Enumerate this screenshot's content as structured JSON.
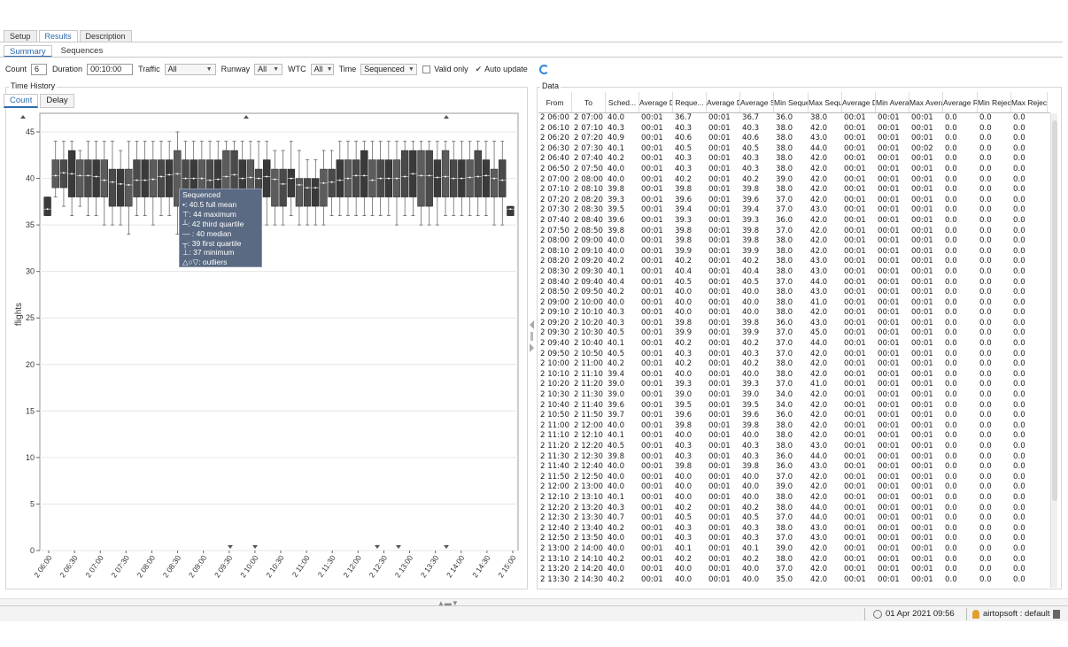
{
  "tabs_main": [
    "Setup",
    "Results",
    "Description"
  ],
  "tabs_sub": [
    "Summary",
    "Sequences"
  ],
  "toolbar": {
    "count_label": "Count",
    "count_value": "6",
    "duration_label": "Duration",
    "duration_value": "00:10:00",
    "traffic_label": "Traffic",
    "traffic_value": "All",
    "runway_label": "Runway",
    "runway_value": "All",
    "wtc_label": "WTC",
    "wtc_value": "All",
    "time_label": "Time",
    "time_value": "Sequenced",
    "valid_only": "Valid only",
    "auto_update": "Auto update"
  },
  "left": {
    "title": "Time History",
    "tabs": [
      "Count",
      "Delay"
    ]
  },
  "tooltip": {
    "title": "Sequenced",
    "lines": [
      "•: 40.5   full mean",
      "⊤: 44    maximum",
      "┴: 42   third quartile",
      "— : 40    median",
      "┬: 39   first quartile",
      "⊥: 37    minimum",
      "△○▽:   outliers"
    ]
  },
  "chart_data": {
    "type": "box",
    "ylabel": "flights",
    "ylim": [
      0,
      47
    ],
    "yticks": [
      0,
      5,
      10,
      15,
      20,
      25,
      30,
      35,
      40,
      45
    ],
    "xticks": [
      "2 06:00",
      "2 06:30",
      "2 07:00",
      "2 07:30",
      "2 08:00",
      "2 08:30",
      "2 09:00",
      "2 09:30",
      "2 10:00",
      "2 10:30",
      "2 11:00",
      "2 11:30",
      "2 12:00",
      "2 12:30",
      "2 13:00",
      "2 13:30",
      "2 14:00",
      "2 14:30",
      "2 15:00"
    ],
    "medians": [
      36.7,
      40.3,
      40.6,
      40.5,
      40.3,
      40.3,
      40.2,
      39.8,
      39.6,
      39.4,
      39.3,
      39.8,
      39.8,
      39.9,
      40.2,
      40.4,
      40.5,
      40.0,
      40.0,
      40.0,
      39.8,
      39.9,
      40.2,
      40.4,
      40.0,
      40.1,
      40.0,
      40.2,
      39.9,
      39.4,
      40.0,
      39.3,
      39.0,
      39.0,
      39.5,
      39.6,
      39.8,
      40.0,
      40.3,
      40.3,
      39.8,
      40.0,
      40.0,
      40.0,
      40.2,
      40.5,
      40.3,
      40.3,
      40.1,
      40.2,
      40.0,
      40.0,
      40.1,
      40.2,
      40.3,
      40.0,
      39.8,
      36.7
    ],
    "boxes": [
      [
        36,
        38
      ],
      [
        39,
        42
      ],
      [
        39,
        42
      ],
      [
        38,
        43
      ],
      [
        38,
        42
      ],
      [
        38,
        42
      ],
      [
        38,
        42
      ],
      [
        38,
        42
      ],
      [
        37,
        41
      ],
      [
        37,
        41
      ],
      [
        37,
        41
      ],
      [
        38,
        42
      ],
      [
        38,
        42
      ],
      [
        38,
        42
      ],
      [
        38,
        42
      ],
      [
        38,
        42
      ],
      [
        37,
        43
      ],
      [
        38,
        42
      ],
      [
        38,
        42
      ],
      [
        38,
        42
      ],
      [
        38,
        42
      ],
      [
        37,
        42
      ],
      [
        38,
        43
      ],
      [
        38,
        43
      ],
      [
        38,
        42
      ],
      [
        38,
        42
      ],
      [
        38,
        41
      ],
      [
        38,
        42
      ],
      [
        37,
        41
      ],
      [
        37,
        41
      ],
      [
        38,
        41
      ],
      [
        37,
        40
      ],
      [
        37,
        40
      ],
      [
        37,
        40
      ],
      [
        37,
        41
      ],
      [
        38,
        41
      ],
      [
        38,
        42
      ],
      [
        38,
        42
      ],
      [
        38,
        42
      ],
      [
        38,
        43
      ],
      [
        38,
        42
      ],
      [
        38,
        42
      ],
      [
        38,
        42
      ],
      [
        38,
        42
      ],
      [
        38,
        43
      ],
      [
        38,
        43
      ],
      [
        37,
        43
      ],
      [
        37,
        43
      ],
      [
        38,
        42
      ],
      [
        38,
        43
      ],
      [
        38,
        42
      ],
      [
        38,
        42
      ],
      [
        38,
        42
      ],
      [
        38,
        43
      ],
      [
        38,
        42
      ],
      [
        38,
        41
      ],
      [
        38,
        42
      ],
      [
        36,
        37
      ]
    ],
    "whiskers": [
      [
        36,
        38
      ],
      [
        38,
        44
      ],
      [
        37,
        44
      ],
      [
        36,
        44
      ],
      [
        37,
        43
      ],
      [
        36,
        44
      ],
      [
        36,
        44
      ],
      [
        35,
        44
      ],
      [
        35,
        44
      ],
      [
        35,
        43
      ],
      [
        34,
        44
      ],
      [
        36,
        44
      ],
      [
        36,
        44
      ],
      [
        35,
        44
      ],
      [
        36,
        44
      ],
      [
        36,
        44
      ],
      [
        34,
        45
      ],
      [
        36,
        44
      ],
      [
        36,
        44
      ],
      [
        36,
        44
      ],
      [
        35,
        44
      ],
      [
        35,
        44
      ],
      [
        36,
        44
      ],
      [
        36,
        44
      ],
      [
        36,
        44
      ],
      [
        35,
        44
      ],
      [
        36,
        44
      ],
      [
        35,
        44
      ],
      [
        35,
        43
      ],
      [
        35,
        43
      ],
      [
        36,
        44
      ],
      [
        35,
        43
      ],
      [
        35,
        42
      ],
      [
        35,
        42
      ],
      [
        35,
        43
      ],
      [
        36,
        43
      ],
      [
        36,
        44
      ],
      [
        36,
        44
      ],
      [
        36,
        44
      ],
      [
        36,
        44
      ],
      [
        36,
        44
      ],
      [
        36,
        44
      ],
      [
        36,
        44
      ],
      [
        35,
        44
      ],
      [
        36,
        44
      ],
      [
        36,
        44
      ],
      [
        35,
        44
      ],
      [
        35,
        44
      ],
      [
        35,
        44
      ],
      [
        36,
        44
      ],
      [
        36,
        44
      ],
      [
        36,
        44
      ],
      [
        36,
        44
      ],
      [
        36,
        44
      ],
      [
        36,
        44
      ],
      [
        35,
        44
      ],
      [
        35,
        44
      ],
      [
        36,
        37
      ]
    ]
  },
  "right": {
    "title": "Data",
    "columns": [
      "From",
      "To",
      "Sched...",
      "Average Delay",
      "Reque...",
      "Average Delay",
      "Average Sequence",
      "Min Sequence",
      "Max Sequence",
      "Average Delay",
      "Min Average",
      "Max Average",
      "Average Rejected",
      "Min Rejected",
      "Max Rejected"
    ],
    "rows": [
      [
        "2 06:00",
        "2 07:00",
        "40.0",
        "00:01",
        "36.7",
        "00:01",
        "36.7",
        "36.0",
        "38.0",
        "00:01",
        "00:01",
        "00:01",
        "0.0",
        "0.0",
        "0.0"
      ],
      [
        "2 06:10",
        "2 07:10",
        "40.3",
        "00:01",
        "40.3",
        "00:01",
        "40.3",
        "38.0",
        "42.0",
        "00:01",
        "00:01",
        "00:01",
        "0.0",
        "0.0",
        "0.0"
      ],
      [
        "2 06:20",
        "2 07:20",
        "40.9",
        "00:01",
        "40.6",
        "00:01",
        "40.6",
        "38.0",
        "43.0",
        "00:01",
        "00:01",
        "00:01",
        "0.0",
        "0.0",
        "0.0"
      ],
      [
        "2 06:30",
        "2 07:30",
        "40.1",
        "00:01",
        "40.5",
        "00:01",
        "40.5",
        "38.0",
        "44.0",
        "00:01",
        "00:01",
        "00:02",
        "0.0",
        "0.0",
        "0.0"
      ],
      [
        "2 06:40",
        "2 07:40",
        "40.2",
        "00:01",
        "40.3",
        "00:01",
        "40.3",
        "38.0",
        "42.0",
        "00:01",
        "00:01",
        "00:01",
        "0.0",
        "0.0",
        "0.0"
      ],
      [
        "2 06:50",
        "2 07:50",
        "40.0",
        "00:01",
        "40.3",
        "00:01",
        "40.3",
        "38.0",
        "42.0",
        "00:01",
        "00:01",
        "00:01",
        "0.0",
        "0.0",
        "0.0"
      ],
      [
        "2 07:00",
        "2 08:00",
        "40.0",
        "00:01",
        "40.2",
        "00:01",
        "40.2",
        "39.0",
        "42.0",
        "00:01",
        "00:01",
        "00:01",
        "0.0",
        "0.0",
        "0.0"
      ],
      [
        "2 07:10",
        "2 08:10",
        "39.8",
        "00:01",
        "39.8",
        "00:01",
        "39.8",
        "38.0",
        "42.0",
        "00:01",
        "00:01",
        "00:01",
        "0.0",
        "0.0",
        "0.0"
      ],
      [
        "2 07:20",
        "2 08:20",
        "39.3",
        "00:01",
        "39.6",
        "00:01",
        "39.6",
        "37.0",
        "42.0",
        "00:01",
        "00:01",
        "00:01",
        "0.0",
        "0.0",
        "0.0"
      ],
      [
        "2 07:30",
        "2 08:30",
        "39.5",
        "00:01",
        "39.4",
        "00:01",
        "39.4",
        "37.0",
        "43.0",
        "00:01",
        "00:01",
        "00:01",
        "0.0",
        "0.0",
        "0.0"
      ],
      [
        "2 07:40",
        "2 08:40",
        "39.6",
        "00:01",
        "39.3",
        "00:01",
        "39.3",
        "36.0",
        "42.0",
        "00:01",
        "00:01",
        "00:01",
        "0.0",
        "0.0",
        "0.0"
      ],
      [
        "2 07:50",
        "2 08:50",
        "39.8",
        "00:01",
        "39.8",
        "00:01",
        "39.8",
        "37.0",
        "42.0",
        "00:01",
        "00:01",
        "00:01",
        "0.0",
        "0.0",
        "0.0"
      ],
      [
        "2 08:00",
        "2 09:00",
        "40.0",
        "00:01",
        "39.8",
        "00:01",
        "39.8",
        "38.0",
        "42.0",
        "00:01",
        "00:01",
        "00:01",
        "0.0",
        "0.0",
        "0.0"
      ],
      [
        "2 08:10",
        "2 09:10",
        "40.0",
        "00:01",
        "39.9",
        "00:01",
        "39.9",
        "38.0",
        "42.0",
        "00:01",
        "00:01",
        "00:01",
        "0.0",
        "0.0",
        "0.0"
      ],
      [
        "2 08:20",
        "2 09:20",
        "40.2",
        "00:01",
        "40.2",
        "00:01",
        "40.2",
        "38.0",
        "43.0",
        "00:01",
        "00:01",
        "00:01",
        "0.0",
        "0.0",
        "0.0"
      ],
      [
        "2 08:30",
        "2 09:30",
        "40.1",
        "00:01",
        "40.4",
        "00:01",
        "40.4",
        "38.0",
        "43.0",
        "00:01",
        "00:01",
        "00:01",
        "0.0",
        "0.0",
        "0.0"
      ],
      [
        "2 08:40",
        "2 09:40",
        "40.4",
        "00:01",
        "40.5",
        "00:01",
        "40.5",
        "37.0",
        "44.0",
        "00:01",
        "00:01",
        "00:01",
        "0.0",
        "0.0",
        "0.0"
      ],
      [
        "2 08:50",
        "2 09:50",
        "40.2",
        "00:01",
        "40.0",
        "00:01",
        "40.0",
        "38.0",
        "43.0",
        "00:01",
        "00:01",
        "00:01",
        "0.0",
        "0.0",
        "0.0"
      ],
      [
        "2 09:00",
        "2 10:00",
        "40.0",
        "00:01",
        "40.0",
        "00:01",
        "40.0",
        "38.0",
        "41.0",
        "00:01",
        "00:01",
        "00:01",
        "0.0",
        "0.0",
        "0.0"
      ],
      [
        "2 09:10",
        "2 10:10",
        "40.3",
        "00:01",
        "40.0",
        "00:01",
        "40.0",
        "38.0",
        "42.0",
        "00:01",
        "00:01",
        "00:01",
        "0.0",
        "0.0",
        "0.0"
      ],
      [
        "2 09:20",
        "2 10:20",
        "40.3",
        "00:01",
        "39.8",
        "00:01",
        "39.8",
        "36.0",
        "43.0",
        "00:01",
        "00:01",
        "00:01",
        "0.0",
        "0.0",
        "0.0"
      ],
      [
        "2 09:30",
        "2 10:30",
        "40.5",
        "00:01",
        "39.9",
        "00:01",
        "39.9",
        "37.0",
        "45.0",
        "00:01",
        "00:01",
        "00:01",
        "0.0",
        "0.0",
        "0.0"
      ],
      [
        "2 09:40",
        "2 10:40",
        "40.1",
        "00:01",
        "40.2",
        "00:01",
        "40.2",
        "37.0",
        "44.0",
        "00:01",
        "00:01",
        "00:01",
        "0.0",
        "0.0",
        "0.0"
      ],
      [
        "2 09:50",
        "2 10:50",
        "40.5",
        "00:01",
        "40.3",
        "00:01",
        "40.3",
        "37.0",
        "42.0",
        "00:01",
        "00:01",
        "00:01",
        "0.0",
        "0.0",
        "0.0"
      ],
      [
        "2 10:00",
        "2 11:00",
        "40.2",
        "00:01",
        "40.2",
        "00:01",
        "40.2",
        "38.0",
        "42.0",
        "00:01",
        "00:01",
        "00:01",
        "0.0",
        "0.0",
        "0.0"
      ],
      [
        "2 10:10",
        "2 11:10",
        "39.4",
        "00:01",
        "40.0",
        "00:01",
        "40.0",
        "38.0",
        "42.0",
        "00:01",
        "00:01",
        "00:01",
        "0.0",
        "0.0",
        "0.0"
      ],
      [
        "2 10:20",
        "2 11:20",
        "39.0",
        "00:01",
        "39.3",
        "00:01",
        "39.3",
        "37.0",
        "41.0",
        "00:01",
        "00:01",
        "00:01",
        "0.0",
        "0.0",
        "0.0"
      ],
      [
        "2 10:30",
        "2 11:30",
        "39.0",
        "00:01",
        "39.0",
        "00:01",
        "39.0",
        "34.0",
        "42.0",
        "00:01",
        "00:01",
        "00:01",
        "0.0",
        "0.0",
        "0.0"
      ],
      [
        "2 10:40",
        "2 11:40",
        "39.6",
        "00:01",
        "39.5",
        "00:01",
        "39.5",
        "34.0",
        "42.0",
        "00:01",
        "00:01",
        "00:01",
        "0.0",
        "0.0",
        "0.0"
      ],
      [
        "2 10:50",
        "2 11:50",
        "39.7",
        "00:01",
        "39.6",
        "00:01",
        "39.6",
        "36.0",
        "42.0",
        "00:01",
        "00:01",
        "00:01",
        "0.0",
        "0.0",
        "0.0"
      ],
      [
        "2 11:00",
        "2 12:00",
        "40.0",
        "00:01",
        "39.8",
        "00:01",
        "39.8",
        "38.0",
        "42.0",
        "00:01",
        "00:01",
        "00:01",
        "0.0",
        "0.0",
        "0.0"
      ],
      [
        "2 11:10",
        "2 12:10",
        "40.1",
        "00:01",
        "40.0",
        "00:01",
        "40.0",
        "38.0",
        "42.0",
        "00:01",
        "00:01",
        "00:01",
        "0.0",
        "0.0",
        "0.0"
      ],
      [
        "2 11:20",
        "2 12:20",
        "40.5",
        "00:01",
        "40.3",
        "00:01",
        "40.3",
        "38.0",
        "43.0",
        "00:01",
        "00:01",
        "00:01",
        "0.0",
        "0.0",
        "0.0"
      ],
      [
        "2 11:30",
        "2 12:30",
        "39.8",
        "00:01",
        "40.3",
        "00:01",
        "40.3",
        "36.0",
        "44.0",
        "00:01",
        "00:01",
        "00:01",
        "0.0",
        "0.0",
        "0.0"
      ],
      [
        "2 11:40",
        "2 12:40",
        "40.0",
        "00:01",
        "39.8",
        "00:01",
        "39.8",
        "36.0",
        "43.0",
        "00:01",
        "00:01",
        "00:01",
        "0.0",
        "0.0",
        "0.0"
      ],
      [
        "2 11:50",
        "2 12:50",
        "40.0",
        "00:01",
        "40.0",
        "00:01",
        "40.0",
        "37.0",
        "42.0",
        "00:01",
        "00:01",
        "00:01",
        "0.0",
        "0.0",
        "0.0"
      ],
      [
        "2 12:00",
        "2 13:00",
        "40.0",
        "00:01",
        "40.0",
        "00:01",
        "40.0",
        "39.0",
        "42.0",
        "00:01",
        "00:01",
        "00:01",
        "0.0",
        "0.0",
        "0.0"
      ],
      [
        "2 12:10",
        "2 13:10",
        "40.1",
        "00:01",
        "40.0",
        "00:01",
        "40.0",
        "38.0",
        "42.0",
        "00:01",
        "00:01",
        "00:01",
        "0.0",
        "0.0",
        "0.0"
      ],
      [
        "2 12:20",
        "2 13:20",
        "40.3",
        "00:01",
        "40.2",
        "00:01",
        "40.2",
        "38.0",
        "44.0",
        "00:01",
        "00:01",
        "00:01",
        "0.0",
        "0.0",
        "0.0"
      ],
      [
        "2 12:30",
        "2 13:30",
        "40.7",
        "00:01",
        "40.5",
        "00:01",
        "40.5",
        "37.0",
        "44.0",
        "00:01",
        "00:01",
        "00:01",
        "0.0",
        "0.0",
        "0.0"
      ],
      [
        "2 12:40",
        "2 13:40",
        "40.2",
        "00:01",
        "40.3",
        "00:01",
        "40.3",
        "38.0",
        "43.0",
        "00:01",
        "00:01",
        "00:01",
        "0.0",
        "0.0",
        "0.0"
      ],
      [
        "2 12:50",
        "2 13:50",
        "40.0",
        "00:01",
        "40.3",
        "00:01",
        "40.3",
        "37.0",
        "43.0",
        "00:01",
        "00:01",
        "00:01",
        "0.0",
        "0.0",
        "0.0"
      ],
      [
        "2 13:00",
        "2 14:00",
        "40.0",
        "00:01",
        "40.1",
        "00:01",
        "40.1",
        "39.0",
        "42.0",
        "00:01",
        "00:01",
        "00:01",
        "0.0",
        "0.0",
        "0.0"
      ],
      [
        "2 13:10",
        "2 14:10",
        "40.2",
        "00:01",
        "40.2",
        "00:01",
        "40.2",
        "38.0",
        "42.0",
        "00:01",
        "00:01",
        "00:01",
        "0.0",
        "0.0",
        "0.0"
      ],
      [
        "2 13:20",
        "2 14:20",
        "40.0",
        "00:01",
        "40.0",
        "00:01",
        "40.0",
        "37.0",
        "42.0",
        "00:01",
        "00:01",
        "00:01",
        "0.0",
        "0.0",
        "0.0"
      ],
      [
        "2 13:30",
        "2 14:30",
        "40.2",
        "00:01",
        "40.0",
        "00:01",
        "40.0",
        "35.0",
        "42.0",
        "00:01",
        "00:01",
        "00:01",
        "0.0",
        "0.0",
        "0.0"
      ]
    ]
  },
  "status": {
    "date": "01 Apr 2021 09:56",
    "user": "airtopsoft : default"
  }
}
